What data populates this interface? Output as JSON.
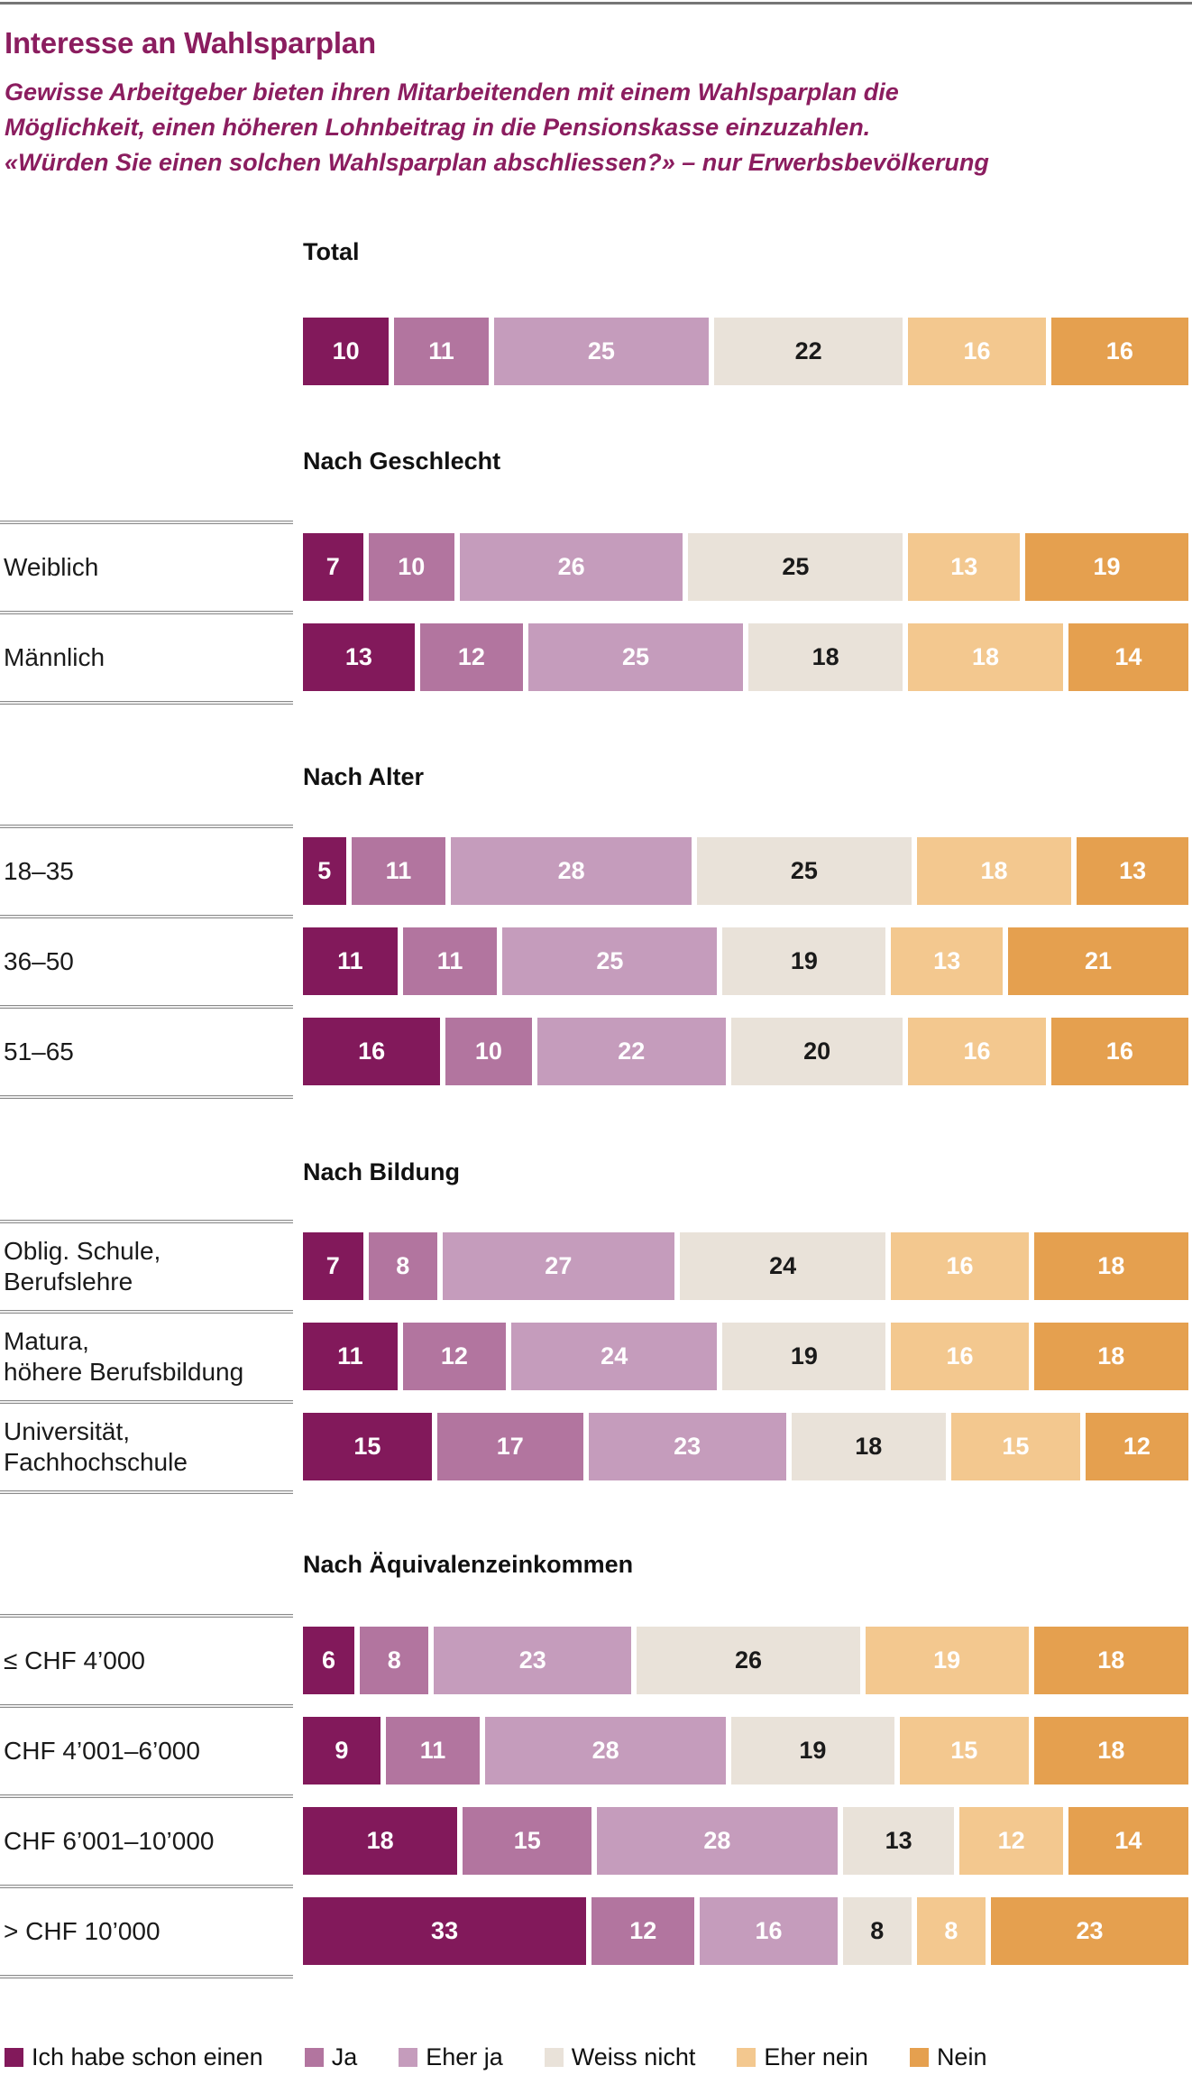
{
  "page": {
    "title": "Interesse an Wahlsparplan",
    "subtitle": "Gewisse Arbeitgeber bieten ihren Mitarbeitenden mit einem Wahlsparplan die\nMöglichkeit, einen höheren Lohnbeitrag in die Pensionskasse einzuzahlen.\n«Würden Sie einen solchen Wahlsparplan abschliessen?» – nur Erwerbsbevölkerung",
    "title_color": "#8B1D5F"
  },
  "legend": {
    "items": [
      {
        "label": "Ich habe schon einen",
        "color": "#82195B"
      },
      {
        "label": "Ja",
        "color": "#B2759F"
      },
      {
        "label": "Eher ja",
        "color": "#C59CBC"
      },
      {
        "label": "Weiss nicht",
        "color": "#E9E2D9"
      },
      {
        "label": "Eher nein",
        "color": "#F3C88F"
      },
      {
        "label": "Nein",
        "color": "#E5A04F"
      }
    ]
  },
  "chart_data": {
    "type": "bar",
    "stacked": true,
    "orientation": "horizontal",
    "unit": "percent",
    "row_total": 100,
    "series_labels": [
      "Ich habe schon einen",
      "Ja",
      "Eher ja",
      "Weiss nicht",
      "Eher nein",
      "Nein"
    ],
    "series_colors": [
      "#82195B",
      "#B2759F",
      "#C59CBC",
      "#E9E2D9",
      "#F3C88F",
      "#E5A04F"
    ],
    "value_text_colors": [
      "#ffffff",
      "#ffffff",
      "#ffffff",
      "#1a1a1a",
      "#ffffff",
      "#ffffff"
    ],
    "sections": [
      {
        "title": "Total",
        "separators": false,
        "rows": [
          {
            "label": "",
            "values": [
              10,
              11,
              25,
              22,
              16,
              16
            ]
          }
        ]
      },
      {
        "title": "Nach Geschlecht",
        "separators": true,
        "rows": [
          {
            "label": "Weiblich",
            "values": [
              7,
              10,
              26,
              25,
              13,
              19
            ]
          },
          {
            "label": "Männlich",
            "values": [
              13,
              12,
              25,
              18,
              18,
              14
            ]
          }
        ]
      },
      {
        "title": "Nach Alter",
        "separators": true,
        "rows": [
          {
            "label": "18–35",
            "values": [
              5,
              11,
              28,
              25,
              18,
              13
            ]
          },
          {
            "label": "36–50",
            "values": [
              11,
              11,
              25,
              19,
              13,
              21
            ]
          },
          {
            "label": "51–65",
            "values": [
              16,
              10,
              22,
              20,
              16,
              16
            ]
          }
        ]
      },
      {
        "title": "Nach Bildung",
        "separators": true,
        "rows": [
          {
            "label": "Oblig. Schule,\nBerufslehre",
            "values": [
              7,
              8,
              27,
              24,
              16,
              18
            ]
          },
          {
            "label": "Matura,\nhöhere Berufsbildung",
            "values": [
              11,
              12,
              24,
              19,
              16,
              18
            ]
          },
          {
            "label": "Universität,\nFachhochschule",
            "values": [
              15,
              17,
              23,
              18,
              15,
              12
            ]
          }
        ]
      },
      {
        "title": "Nach Äquivalenzeinkommen",
        "separators": true,
        "rows": [
          {
            "label": "≤ CHF 4’000",
            "values": [
              6,
              8,
              23,
              26,
              19,
              18
            ]
          },
          {
            "label": "CHF 4’001–6’000",
            "values": [
              9,
              11,
              28,
              19,
              15,
              18
            ]
          },
          {
            "label": "CHF 6’001–10’000",
            "values": [
              18,
              15,
              28,
              13,
              12,
              14
            ]
          },
          {
            "label": "> CHF 10’000",
            "values": [
              33,
              12,
              16,
              8,
              8,
              23
            ]
          }
        ]
      }
    ]
  }
}
